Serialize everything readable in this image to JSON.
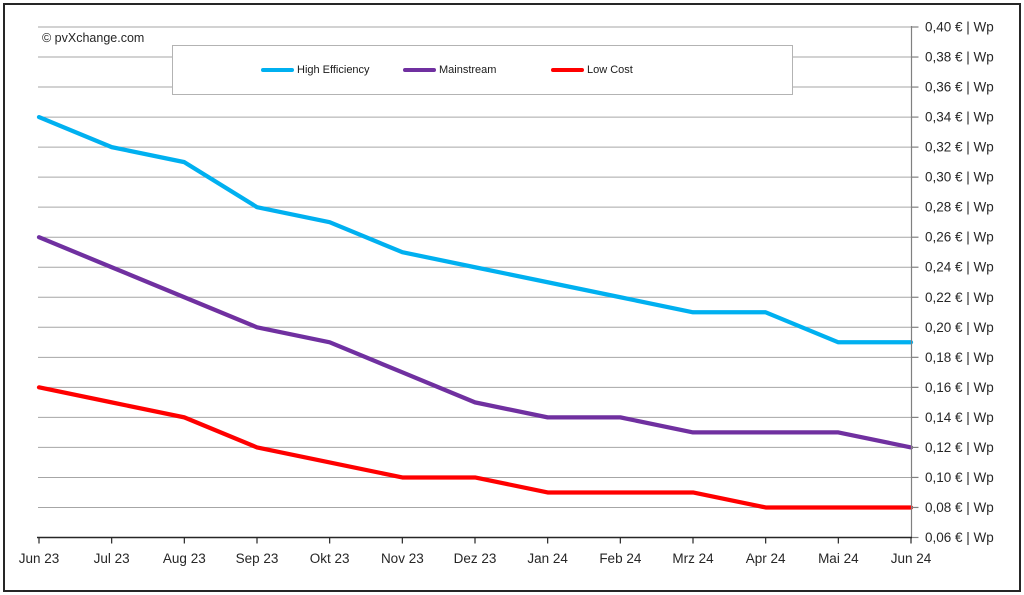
{
  "branding": {
    "copyright": "© pvXchange.com"
  },
  "legend": [
    {
      "label": "High Efficiency",
      "color": "#00B0F0"
    },
    {
      "label": "Mainstream",
      "color": "#7030A0"
    },
    {
      "label": "Low Cost",
      "color": "#FF0000"
    }
  ],
  "chart_data": {
    "type": "line",
    "title": "",
    "xlabel": "",
    "ylabel": "€ | Wp",
    "grid": true,
    "legend_position": "top",
    "ylim": [
      0.06,
      0.4
    ],
    "ytick_step": 0.02,
    "y_ticks": [
      "0,40 € | Wp",
      "0,38 € | Wp",
      "0,36 € | Wp",
      "0,34 € | Wp",
      "0,32 € | Wp",
      "0,30 € | Wp",
      "0,28 € | Wp",
      "0,26 € | Wp",
      "0,24 € | Wp",
      "0,22 € | Wp",
      "0,20 € | Wp",
      "0,18 € | Wp",
      "0,16 € | Wp",
      "0,14 € | Wp",
      "0,12 € | Wp",
      "0,10 € | Wp",
      "0,08 € | Wp",
      "0,06 € | Wp"
    ],
    "categories": [
      "Jun 23",
      "Jul 23",
      "Aug 23",
      "Sep 23",
      "Okt 23",
      "Nov 23",
      "Dez 23",
      "Jan 24",
      "Feb 24",
      "Mrz 24",
      "Apr 24",
      "Mai 24",
      "Jun 24"
    ],
    "series": [
      {
        "name": "High Efficiency",
        "color": "#00B0F0",
        "values": [
          0.34,
          0.32,
          0.31,
          0.28,
          0.27,
          0.25,
          0.24,
          0.23,
          0.22,
          0.21,
          0.21,
          0.19,
          0.19
        ]
      },
      {
        "name": "Mainstream",
        "color": "#7030A0",
        "values": [
          0.26,
          0.24,
          0.22,
          0.2,
          0.19,
          0.17,
          0.15,
          0.14,
          0.14,
          0.13,
          0.13,
          0.13,
          0.12
        ]
      },
      {
        "name": "Low Cost",
        "color": "#FF0000",
        "values": [
          0.16,
          0.15,
          0.14,
          0.12,
          0.11,
          0.1,
          0.1,
          0.09,
          0.09,
          0.09,
          0.08,
          0.08,
          0.08
        ]
      }
    ],
    "colors": {
      "gridline": "#a6a6a6",
      "y_axis": "#808080",
      "x_axis": "#262626",
      "label": "#262626"
    }
  }
}
